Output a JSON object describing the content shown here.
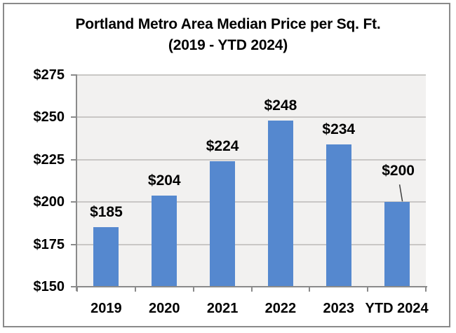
{
  "chart_data": {
    "type": "bar",
    "title": "Portland Metro Area Median Price per Sq. Ft.",
    "subtitle": "(2019 - YTD 2024)",
    "categories": [
      "2019",
      "2020",
      "2021",
      "2022",
      "2023",
      "YTD 2024"
    ],
    "values": [
      185,
      204,
      224,
      248,
      234,
      200
    ],
    "data_labels": [
      "$185",
      "$204",
      "$224",
      "$248",
      "$234",
      "$200"
    ],
    "y_tick_labels": [
      "$275",
      "$250",
      "$225",
      "$200",
      "$175",
      "$150"
    ],
    "y_tick_values": [
      275,
      250,
      225,
      200,
      175,
      150
    ],
    "ylim": [
      150,
      275
    ],
    "xlabel": "",
    "ylabel": "",
    "grid": true,
    "legend": "none",
    "callout": {
      "index": 5,
      "label": "$200",
      "has_leader_line": true
    },
    "colors": {
      "bar": "#5588cf",
      "plot_background": "#f2f1f0",
      "gridline": "#c9c7c5",
      "axis": "#8a8a8a",
      "text": "#000000",
      "outer_border": "#8a8a8a",
      "leader_line": "#3f3f3f"
    }
  }
}
